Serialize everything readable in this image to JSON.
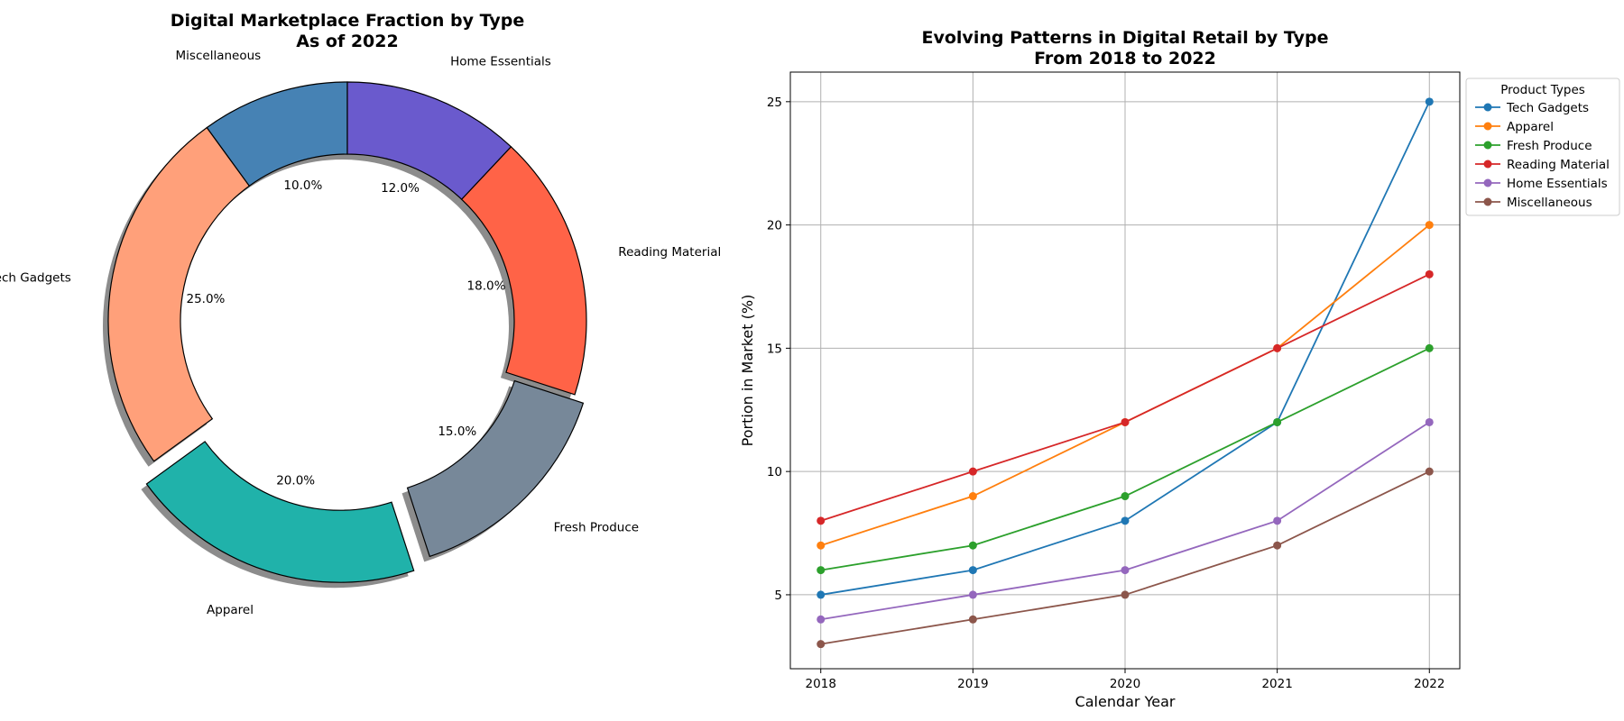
{
  "chart_data": [
    {
      "type": "pie",
      "title": "Digital Marketplace Fraction by Type\nAs of 2022",
      "donut": true,
      "start_angle": 90,
      "direction": "counterclockwise",
      "shadow": true,
      "slices": [
        {
          "label": "Miscellaneous",
          "value": 10.0,
          "pct_label": "10.0%",
          "color": "#4682B4",
          "explode": 0
        },
        {
          "label": "Tech Gadgets",
          "value": 25.0,
          "pct_label": "25.0%",
          "color": "#FFA07A",
          "explode": 0
        },
        {
          "label": "Apparel",
          "value": 20.0,
          "pct_label": "20.0%",
          "color": "#20B2AA",
          "explode": 0.1
        },
        {
          "label": "Fresh Produce",
          "value": 15.0,
          "pct_label": "15.0%",
          "color": "#778899",
          "explode": 0.05
        },
        {
          "label": "Reading Material",
          "value": 18.0,
          "pct_label": "18.0%",
          "color": "#FF6347",
          "explode": 0
        },
        {
          "label": "Home Essentials",
          "value": 12.0,
          "pct_label": "12.0%",
          "color": "#6A5ACD",
          "explode": 0
        }
      ]
    },
    {
      "type": "line",
      "title": "Evolving Patterns in Digital Retail by Type\nFrom 2018 to 2022",
      "xlabel": "Calendar Year",
      "ylabel": "Portion in Market (%)",
      "x": [
        2018,
        2019,
        2020,
        2021,
        2022
      ],
      "xticks": [
        "2018",
        "2019",
        "2020",
        "2021",
        "2022"
      ],
      "yticks": [
        "5",
        "10",
        "15",
        "20",
        "25"
      ],
      "ylim": [
        2.0,
        26.2
      ],
      "xlim": [
        2017.8,
        2022.2
      ],
      "grid": true,
      "legend": {
        "title": "Product Types",
        "placement": "outside upper right"
      },
      "series": [
        {
          "name": "Tech Gadgets",
          "values": [
            5,
            6,
            8,
            12,
            25
          ],
          "color": "#1f77b4"
        },
        {
          "name": "Apparel",
          "values": [
            7,
            9,
            12,
            15,
            20
          ],
          "color": "#ff7f0e"
        },
        {
          "name": "Fresh Produce",
          "values": [
            6,
            7,
            9,
            12,
            15
          ],
          "color": "#2ca02c"
        },
        {
          "name": "Reading Material",
          "values": [
            8,
            10,
            12,
            15,
            18
          ],
          "color": "#d62728"
        },
        {
          "name": "Home Essentials",
          "values": [
            4,
            5,
            6,
            8,
            12
          ],
          "color": "#9467bd"
        },
        {
          "name": "Miscellaneous",
          "values": [
            3,
            4,
            5,
            7,
            10
          ],
          "color": "#8c564b"
        }
      ]
    }
  ]
}
